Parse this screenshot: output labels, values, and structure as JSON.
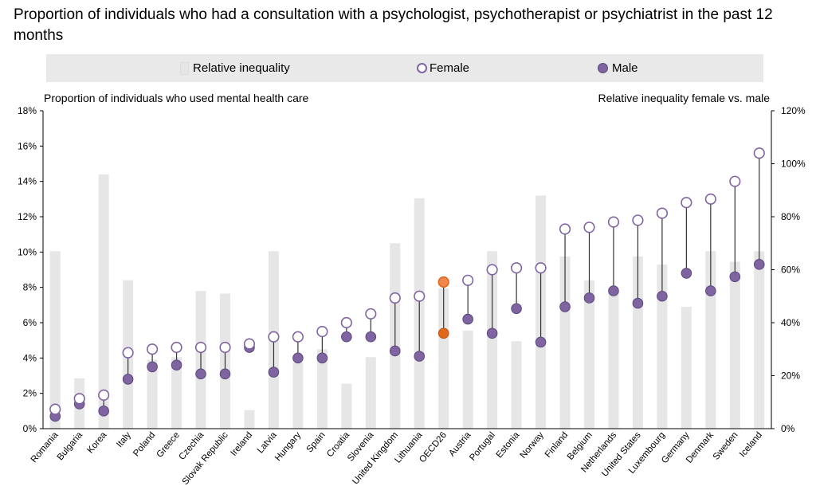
{
  "title": "Proportion of individuals who had a consultation with a psychologist, psychotherapist or psychiatrist in the past 12 months",
  "legend": {
    "bar_label": "Relative inequality",
    "female_label": "Female",
    "male_label": "Male"
  },
  "left_axis_title": "Proportion of individuals who used mental health care",
  "right_axis_title": "Relative inequality female vs. male",
  "chart_data": {
    "type": "bar",
    "categories": [
      "Romania",
      "Bulgaria",
      "Korea",
      "Italy",
      "Poland",
      "Greece",
      "Czechia",
      "Slovak Republic",
      "Ireland",
      "Latvia",
      "Hungary",
      "Spain",
      "Croatia",
      "Slovenia",
      "United Kingdom",
      "Lithuania",
      "OECD26",
      "Austria",
      "Portugal",
      "Estonia",
      "Norway",
      "Finland",
      "Belgium",
      "Netherlands",
      "United States",
      "Luxembourg",
      "Germany",
      "Denmark",
      "Sweden",
      "Iceland"
    ],
    "highlight_category": "OECD26",
    "left_axis": {
      "ylim": [
        0,
        18
      ],
      "ticks": [
        "0%",
        "2%",
        "4%",
        "6%",
        "8%",
        "10%",
        "12%",
        "14%",
        "16%",
        "18%"
      ]
    },
    "right_axis": {
      "ylim": [
        0,
        120
      ],
      "ticks": [
        "0%",
        "20%",
        "40%",
        "60%",
        "80%",
        "100%",
        "120%"
      ]
    },
    "series": [
      {
        "name": "Relative inequality",
        "kind": "bar",
        "axis": "right",
        "values": [
          67,
          19,
          96,
          56,
          26,
          27,
          52,
          51,
          7,
          67,
          25,
          30,
          17,
          27,
          70,
          87,
          53,
          37,
          67,
          33,
          88,
          65,
          56,
          53,
          65,
          62,
          46,
          67,
          63,
          67
        ]
      },
      {
        "name": "Female",
        "kind": "point-open",
        "axis": "left",
        "values": [
          1.1,
          1.7,
          1.9,
          4.3,
          4.5,
          4.6,
          4.6,
          4.6,
          4.8,
          5.2,
          5.2,
          5.5,
          6.0,
          6.5,
          7.4,
          7.5,
          8.3,
          8.4,
          9.0,
          9.1,
          9.1,
          11.3,
          11.4,
          11.7,
          11.8,
          12.2,
          12.8,
          13.0,
          14.0,
          15.6
        ]
      },
      {
        "name": "Male",
        "kind": "point-filled",
        "axis": "left",
        "values": [
          0.7,
          1.4,
          1.0,
          2.8,
          3.5,
          3.6,
          3.1,
          3.1,
          4.6,
          3.2,
          4.0,
          4.0,
          5.2,
          5.2,
          4.4,
          4.1,
          5.4,
          6.2,
          5.4,
          6.8,
          4.9,
          6.9,
          7.4,
          7.8,
          7.1,
          7.5,
          8.8,
          7.8,
          8.6,
          9.3
        ]
      }
    ],
    "colors": {
      "bar": "#e6e6e6",
      "marker": "#8064a2",
      "marker_edge": "#5a4a7a",
      "highlight": "#f0874f",
      "highlight_dark": "#e0661b",
      "connector": "#333333"
    },
    "grid": false,
    "legend_position": "top"
  }
}
